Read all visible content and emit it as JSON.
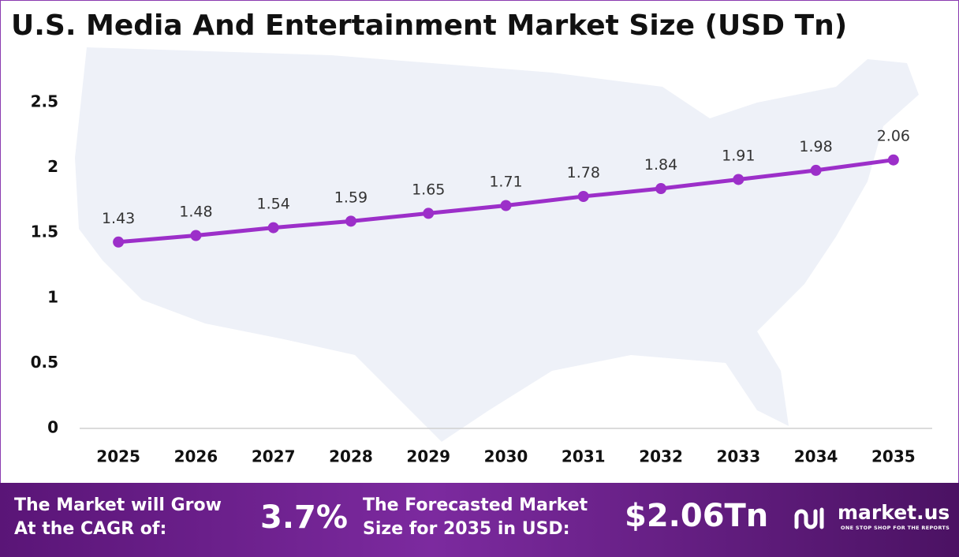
{
  "chart_data": {
    "type": "line",
    "title": "U.S. Media And Entertainment Market Size (USD Tn)",
    "categories": [
      "2025",
      "2026",
      "2027",
      "2028",
      "2029",
      "2030",
      "2031",
      "2032",
      "2033",
      "2034",
      "2035"
    ],
    "values": [
      1.43,
      1.48,
      1.54,
      1.59,
      1.65,
      1.71,
      1.78,
      1.84,
      1.91,
      1.98,
      2.06
    ],
    "color": "#9c2fc9",
    "ylim": [
      0,
      2.5
    ],
    "yticks": [
      0,
      0.5,
      1,
      1.5,
      2,
      2.5
    ],
    "grid": false
  },
  "footer": {
    "cagr_text": [
      "The Market will Grow",
      "At the CAGR of:"
    ],
    "cagr_value": "3.7%",
    "forecast_text": [
      "The Forecasted Market",
      "Size for 2035 in USD:"
    ],
    "forecast_value": "$2.06Tn",
    "brand": "market.us",
    "tagline": "ONE STOP SHOP FOR THE REPORTS"
  }
}
